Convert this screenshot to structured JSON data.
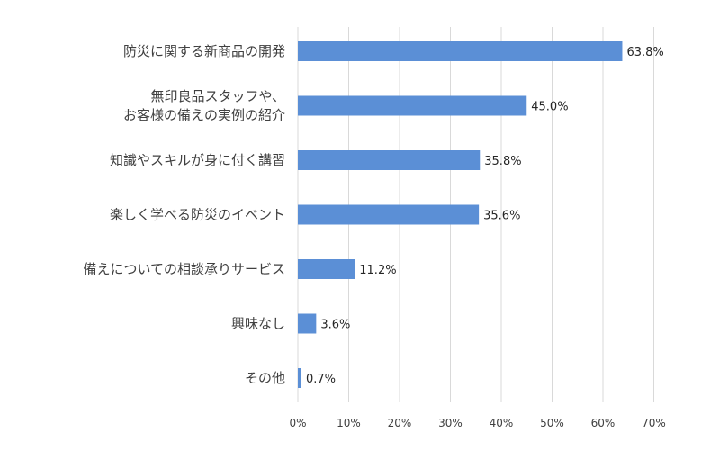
{
  "chart_data": {
    "type": "bar",
    "orientation": "horizontal",
    "categories": [
      "防災に関する新商品の開発",
      "無印良品スタッフや、\nお客様の備えの実例の紹介",
      "知識やスキルが身に付く講習",
      "楽しく学べる防災のイベント",
      "備えについての相談承りサービス",
      "興味なし",
      "その他"
    ],
    "values": [
      63.8,
      45.0,
      35.8,
      35.6,
      11.2,
      3.6,
      0.7
    ],
    "value_labels": [
      "63.8%",
      "45.0%",
      "35.8%",
      "35.6%",
      "11.2%",
      "3.6%",
      "0.7%"
    ],
    "x_ticks": [
      "0%",
      "10%",
      "20%",
      "30%",
      "40%",
      "50%",
      "60%",
      "70%"
    ],
    "xlim": [
      0,
      70
    ],
    "title": "",
    "xlabel": "",
    "ylabel": "",
    "grid": true,
    "legend": "none",
    "bar_color": "#5B8FD6"
  }
}
